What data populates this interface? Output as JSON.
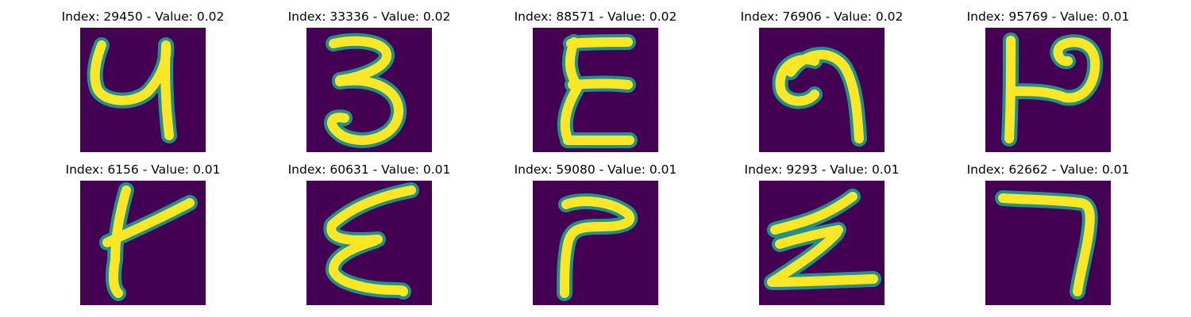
{
  "colors": {
    "background": "#440154",
    "stroke": "#fde725",
    "edge": "#21918c"
  },
  "panels": [
    {
      "title": "Index: 29450 - Value: 0.02",
      "glyph": "4-like"
    },
    {
      "title": "Index: 33336 - Value: 0.02",
      "glyph": "3"
    },
    {
      "title": "Index: 88571 - Value: 0.02",
      "glyph": "zigzag-E"
    },
    {
      "title": "Index: 76906 - Value: 0.02",
      "glyph": "hook-9"
    },
    {
      "title": "Index: 95769 - Value: 0.01",
      "glyph": "P-reversed"
    },
    {
      "title": "Index: 6156 - Value: 0.01",
      "glyph": "t-like"
    },
    {
      "title": "Index: 60631 - Value: 0.01",
      "glyph": "E-script"
    },
    {
      "title": "Index: 59080 - Value: 0.01",
      "glyph": "corner-L"
    },
    {
      "title": "Index: 9293 - Value: 0.01",
      "glyph": "Z-script"
    },
    {
      "title": "Index: 62662 - Value: 0.01",
      "glyph": "7"
    }
  ]
}
